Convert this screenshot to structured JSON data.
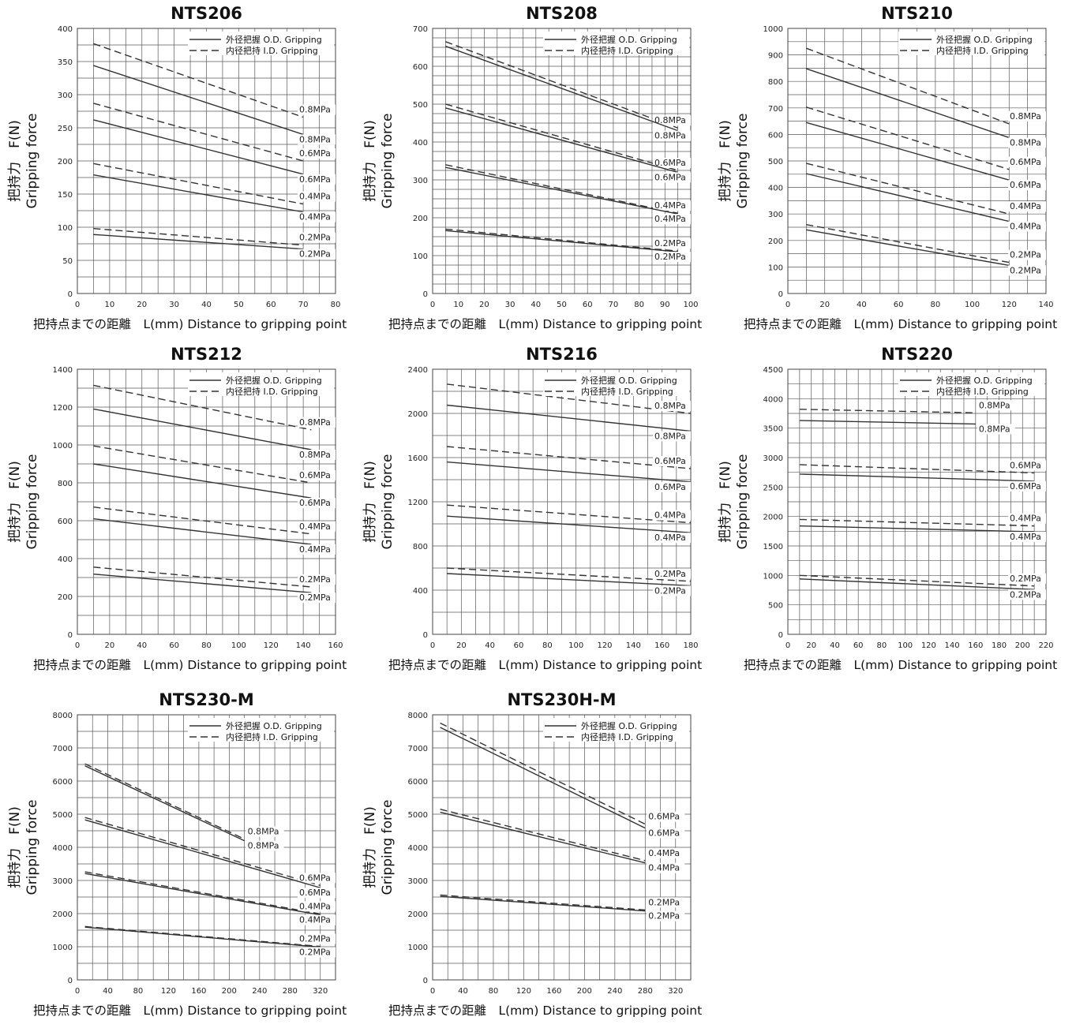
{
  "chart_data": [
    {
      "type": "line",
      "title": "NTS206",
      "ylabel": [
        "把持力　F(N)",
        "Gripping force"
      ],
      "xlabel": "把持点までの距離　L(mm)  Distance to gripping point",
      "xlim": [
        0,
        80
      ],
      "ylim": [
        0,
        400
      ],
      "xticks": [
        0,
        10,
        20,
        30,
        40,
        50,
        60,
        70,
        80
      ],
      "yticks": [
        0,
        50,
        100,
        150,
        200,
        250,
        300,
        350,
        400
      ],
      "xgrid": 5,
      "ygrid": 25,
      "legend": [
        "外径把握 O.D. Gripping",
        "内径把持 I.D. Gripping"
      ],
      "series": [
        {
          "style": "dash",
          "label": "0.8MPa",
          "x": [
            5,
            70
          ],
          "y": [
            377,
            266
          ]
        },
        {
          "style": "solid",
          "label": "0.8MPa",
          "x": [
            5,
            70
          ],
          "y": [
            344,
            240
          ]
        },
        {
          "style": "dash",
          "label": "0.6MPa",
          "x": [
            5,
            70
          ],
          "y": [
            287,
            200
          ]
        },
        {
          "style": "solid",
          "label": "0.6MPa",
          "x": [
            5,
            70
          ],
          "y": [
            262,
            180
          ]
        },
        {
          "style": "dash",
          "label": "0.4MPa",
          "x": [
            5,
            70
          ],
          "y": [
            196,
            135
          ]
        },
        {
          "style": "solid",
          "label": "0.4MPa",
          "x": [
            5,
            70
          ],
          "y": [
            179,
            123
          ]
        },
        {
          "style": "dash",
          "label": "0.2MPa",
          "x": [
            5,
            70
          ],
          "y": [
            98,
            73
          ]
        },
        {
          "style": "solid",
          "label": "0.2MPa",
          "x": [
            5,
            70
          ],
          "y": [
            89,
            67
          ]
        }
      ]
    },
    {
      "type": "line",
      "title": "NTS208",
      "ylabel": [
        "把持力　F(N)",
        "Gripping force"
      ],
      "xlabel": "把持点までの距離　L(mm)  Distance to gripping point",
      "xlim": [
        0,
        100
      ],
      "ylim": [
        0,
        700
      ],
      "xticks": [
        0,
        10,
        20,
        30,
        40,
        50,
        60,
        70,
        80,
        90,
        100
      ],
      "yticks": [
        0,
        100,
        200,
        300,
        400,
        500,
        600,
        700
      ],
      "xgrid": 5,
      "ygrid": 25,
      "legend": [
        "外径把握 O.D. Gripping",
        "内径把持 I.D. Gripping"
      ],
      "series": [
        {
          "style": "dash",
          "label": "0.8MPa",
          "x": [
            5,
            95
          ],
          "y": [
            665,
            437
          ]
        },
        {
          "style": "solid",
          "label": "0.8MPa",
          "x": [
            5,
            95
          ],
          "y": [
            653,
            430
          ]
        },
        {
          "style": "dash",
          "label": "0.6MPa",
          "x": [
            5,
            95
          ],
          "y": [
            500,
            325
          ]
        },
        {
          "style": "solid",
          "label": "0.6MPa",
          "x": [
            5,
            95
          ],
          "y": [
            490,
            320
          ]
        },
        {
          "style": "dash",
          "label": "0.4MPa",
          "x": [
            5,
            95
          ],
          "y": [
            340,
            212
          ]
        },
        {
          "style": "solid",
          "label": "0.4MPa",
          "x": [
            5,
            95
          ],
          "y": [
            333,
            210
          ]
        },
        {
          "style": "dash",
          "label": "0.2MPa",
          "x": [
            5,
            95
          ],
          "y": [
            170,
            112
          ]
        },
        {
          "style": "solid",
          "label": "0.2MPa",
          "x": [
            5,
            95
          ],
          "y": [
            166,
            110
          ]
        }
      ]
    },
    {
      "type": "line",
      "title": "NTS210",
      "ylabel": [
        "把持力　F(N)",
        "Gripping force"
      ],
      "xlabel": "把持点までの距離　L(mm)  Distance to gripping point",
      "xlim": [
        0,
        140
      ],
      "ylim": [
        0,
        1000
      ],
      "xticks": [
        0,
        20,
        40,
        60,
        80,
        100,
        120,
        140
      ],
      "yticks": [
        0,
        100,
        200,
        300,
        400,
        500,
        600,
        700,
        800,
        900,
        1000
      ],
      "xgrid": 10,
      "ygrid": 50,
      "legend": [
        "外径把握 O.D. Gripping",
        "内径把持 I.D. Gripping"
      ],
      "series": [
        {
          "style": "dash",
          "label": "0.8MPa",
          "x": [
            10,
            120
          ],
          "y": [
            925,
            640
          ]
        },
        {
          "style": "solid",
          "label": "0.8MPa",
          "x": [
            10,
            120
          ],
          "y": [
            848,
            588
          ]
        },
        {
          "style": "dash",
          "label": "0.6MPa",
          "x": [
            10,
            120
          ],
          "y": [
            703,
            468
          ]
        },
        {
          "style": "solid",
          "label": "0.6MPa",
          "x": [
            10,
            120
          ],
          "y": [
            645,
            428
          ]
        },
        {
          "style": "dash",
          "label": "0.4MPa",
          "x": [
            10,
            120
          ],
          "y": [
            491,
            300
          ]
        },
        {
          "style": "solid",
          "label": "0.4MPa",
          "x": [
            10,
            120
          ],
          "y": [
            452,
            272
          ]
        },
        {
          "style": "dash",
          "label": "0.2MPa",
          "x": [
            10,
            120
          ],
          "y": [
            260,
            117
          ]
        },
        {
          "style": "solid",
          "label": "0.2MPa",
          "x": [
            10,
            120
          ],
          "y": [
            240,
            106
          ]
        }
      ]
    },
    {
      "type": "line",
      "title": "NTS212",
      "ylabel": [
        "把持力　F(N)",
        "Gripping force"
      ],
      "xlabel": "把持点までの距離　L(mm)  Distance to gripping point",
      "xlim": [
        0,
        160
      ],
      "ylim": [
        0,
        1400
      ],
      "xticks": [
        0,
        20,
        40,
        60,
        80,
        100,
        120,
        140,
        160
      ],
      "yticks": [
        0,
        200,
        400,
        600,
        800,
        1000,
        1200,
        1400
      ],
      "xgrid": 10,
      "ygrid": 100,
      "legend": [
        "外径把握 O.D. Gripping",
        "内径把持 I.D. Gripping"
      ],
      "series": [
        {
          "style": "dash",
          "label": "0.8MPa",
          "x": [
            10,
            145
          ],
          "y": [
            1315,
            1080
          ]
        },
        {
          "style": "solid",
          "label": "0.8MPa",
          "x": [
            10,
            145
          ],
          "y": [
            1190,
            975
          ]
        },
        {
          "style": "dash",
          "label": "0.6MPa",
          "x": [
            10,
            145
          ],
          "y": [
            995,
            800
          ]
        },
        {
          "style": "solid",
          "label": "0.6MPa",
          "x": [
            10,
            145
          ],
          "y": [
            900,
            720
          ]
        },
        {
          "style": "dash",
          "label": "0.4MPa",
          "x": [
            10,
            145
          ],
          "y": [
            672,
            530
          ]
        },
        {
          "style": "solid",
          "label": "0.4MPa",
          "x": [
            10,
            145
          ],
          "y": [
            610,
            475
          ]
        },
        {
          "style": "dash",
          "label": "0.2MPa",
          "x": [
            10,
            145
          ],
          "y": [
            355,
            250
          ]
        },
        {
          "style": "solid",
          "label": "0.2MPa",
          "x": [
            10,
            145
          ],
          "y": [
            318,
            220
          ]
        }
      ]
    },
    {
      "type": "line",
      "title": "NTS216",
      "ylabel": [
        "把持力　F(N)",
        "Gripping force"
      ],
      "xlabel": "把持点までの距離　L(mm)  Distance to gripping point",
      "xlim": [
        0,
        180
      ],
      "ylim": [
        0,
        2400
      ],
      "xticks": [
        0,
        20,
        40,
        60,
        80,
        100,
        120,
        140,
        160,
        180
      ],
      "yticks": [
        0,
        400,
        800,
        1200,
        1600,
        2000,
        2400
      ],
      "xgrid": 10,
      "ygrid": 200,
      "legend": [
        "外径把握 O.D. Gripping",
        "内径把持 I.D. Gripping"
      ],
      "series": [
        {
          "style": "dash",
          "label": "0.8MPa",
          "x": [
            10,
            180
          ],
          "y": [
            2265,
            2000
          ]
        },
        {
          "style": "solid",
          "label": "0.8MPa",
          "x": [
            10,
            180
          ],
          "y": [
            2075,
            1840
          ]
        },
        {
          "style": "dash",
          "label": "0.6MPa",
          "x": [
            10,
            180
          ],
          "y": [
            1700,
            1500
          ]
        },
        {
          "style": "solid",
          "label": "0.6MPa",
          "x": [
            10,
            180
          ],
          "y": [
            1560,
            1380
          ]
        },
        {
          "style": "dash",
          "label": "0.4MPa",
          "x": [
            10,
            180
          ],
          "y": [
            1170,
            1010
          ]
        },
        {
          "style": "solid",
          "label": "0.4MPa",
          "x": [
            10,
            180
          ],
          "y": [
            1070,
            920
          ]
        },
        {
          "style": "dash",
          "label": "0.2MPa",
          "x": [
            10,
            180
          ],
          "y": [
            600,
            480
          ]
        },
        {
          "style": "solid",
          "label": "0.2MPa",
          "x": [
            10,
            180
          ],
          "y": [
            550,
            440
          ]
        }
      ]
    },
    {
      "type": "line",
      "title": "NTS220",
      "ylabel": [
        "把持力　F(N)",
        "Gripping force"
      ],
      "xlabel": "把持点までの距離　L(mm)  Distance to gripping point",
      "xlim": [
        0,
        220
      ],
      "ylim": [
        0,
        4500
      ],
      "xticks": [
        0,
        20,
        40,
        60,
        80,
        100,
        120,
        140,
        160,
        180,
        200,
        220
      ],
      "yticks": [
        0,
        500,
        1000,
        1500,
        2000,
        2500,
        3000,
        3500,
        4000,
        4500
      ],
      "xgrid": 10,
      "ygrid": 250,
      "legend": [
        "外径把握 O.D. Gripping",
        "内径把持 I.D. Gripping"
      ],
      "series": [
        {
          "style": "dash",
          "label": "0.8MPa",
          "x": [
            10,
            160
          ],
          "y": [
            3820,
            3760
          ]
        },
        {
          "style": "solid",
          "label": "0.8MPa",
          "x": [
            10,
            160
          ],
          "y": [
            3630,
            3570
          ]
        },
        {
          "style": "dash",
          "label": "0.6MPa",
          "x": [
            10,
            210
          ],
          "y": [
            2880,
            2740
          ]
        },
        {
          "style": "solid",
          "label": "0.6MPa",
          "x": [
            10,
            210
          ],
          "y": [
            2720,
            2600
          ]
        },
        {
          "style": "dash",
          "label": "0.4MPa",
          "x": [
            10,
            210
          ],
          "y": [
            1950,
            1840
          ]
        },
        {
          "style": "solid",
          "label": "0.4MPa",
          "x": [
            10,
            210
          ],
          "y": [
            1840,
            1740
          ]
        },
        {
          "style": "dash",
          "label": "0.2MPa",
          "x": [
            10,
            210
          ],
          "y": [
            1000,
            820
          ]
        },
        {
          "style": "solid",
          "label": "0.2MPa",
          "x": [
            10,
            210
          ],
          "y": [
            940,
            760
          ]
        }
      ]
    },
    {
      "type": "line",
      "title": "NTS230-M",
      "ylabel": [
        "把持力　F(N)",
        "Gripping force"
      ],
      "xlabel": "把持点までの距離　L(mm)  Distance to gripping point",
      "xlim": [
        0,
        340
      ],
      "ylim": [
        0,
        8000
      ],
      "xticks": [
        0,
        40,
        80,
        120,
        160,
        200,
        240,
        280,
        320
      ],
      "yticks": [
        0,
        1000,
        2000,
        3000,
        4000,
        5000,
        6000,
        7000,
        8000
      ],
      "xgrid": 20,
      "ygrid": 500,
      "legend": [
        "外径把握 O.D. Gripping",
        "内径把持 I.D. Gripping"
      ],
      "series": [
        {
          "style": "dash",
          "label": "0.8MPa",
          "x": [
            10,
            220
          ],
          "y": [
            6520,
            4250
          ]
        },
        {
          "style": "solid",
          "label": "0.8MPa",
          "x": [
            10,
            220
          ],
          "y": [
            6460,
            4200
          ]
        },
        {
          "style": "dash",
          "label": "0.6MPa",
          "x": [
            10,
            320
          ],
          "y": [
            4900,
            2850
          ]
        },
        {
          "style": "solid",
          "label": "0.6MPa",
          "x": [
            10,
            320
          ],
          "y": [
            4830,
            2780
          ]
        },
        {
          "style": "dash",
          "label": "0.4MPa",
          "x": [
            10,
            320
          ],
          "y": [
            3260,
            1990
          ]
        },
        {
          "style": "solid",
          "label": "0.4MPa",
          "x": [
            10,
            320
          ],
          "y": [
            3210,
            1960
          ]
        },
        {
          "style": "dash",
          "label": "0.2MPa",
          "x": [
            10,
            320
          ],
          "y": [
            1610,
            1010
          ]
        },
        {
          "style": "solid",
          "label": "0.2MPa",
          "x": [
            10,
            320
          ],
          "y": [
            1590,
            990
          ]
        }
      ]
    },
    {
      "type": "line",
      "title": "NTS230H-M",
      "ylabel": [
        "把持力　F(N)",
        "Gripping force"
      ],
      "xlabel": "把持点までの距離　L(mm)  Distance to gripping point",
      "xlim": [
        0,
        340
      ],
      "ylim": [
        0,
        8000
      ],
      "xticks": [
        0,
        40,
        80,
        120,
        160,
        200,
        240,
        280,
        320
      ],
      "yticks": [
        0,
        1000,
        2000,
        3000,
        4000,
        5000,
        6000,
        7000,
        8000
      ],
      "xgrid": 20,
      "ygrid": 500,
      "legend": [
        "外径把握 O.D. Gripping",
        "内径把持 I.D. Gripping"
      ],
      "series": [
        {
          "style": "dash",
          "label": "0.6MPa",
          "x": [
            10,
            280
          ],
          "y": [
            7750,
            4700
          ]
        },
        {
          "style": "solid",
          "label": "0.6MPa",
          "x": [
            10,
            280
          ],
          "y": [
            7620,
            4580
          ]
        },
        {
          "style": "dash",
          "label": "0.4MPa",
          "x": [
            10,
            280
          ],
          "y": [
            5150,
            3600
          ]
        },
        {
          "style": "solid",
          "label": "0.4MPa",
          "x": [
            10,
            280
          ],
          "y": [
            5060,
            3530
          ]
        },
        {
          "style": "dash",
          "label": "0.2MPa",
          "x": [
            10,
            280
          ],
          "y": [
            2560,
            2110
          ]
        },
        {
          "style": "solid",
          "label": "0.2MPa",
          "x": [
            10,
            280
          ],
          "y": [
            2520,
            2080
          ]
        }
      ]
    }
  ]
}
